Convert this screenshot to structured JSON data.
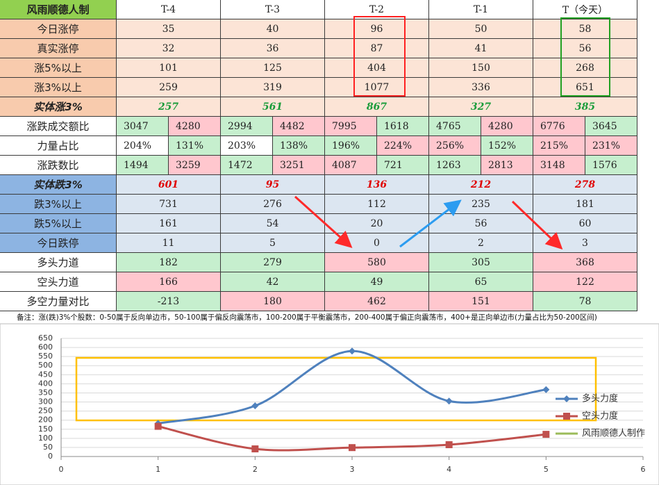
{
  "header": {
    "corner": "风雨顺德人制",
    "columns": [
      "T-4",
      "T-3",
      "T-2",
      "T-1",
      "T（今天）"
    ]
  },
  "table": {
    "rows": [
      {
        "label": "今日涨停",
        "label_fill": "#f8cbad",
        "cells": [
          "35",
          "40",
          "96",
          "50",
          "58"
        ],
        "fills": [
          "#fce4d6",
          "#fce4d6",
          "#fce4d6",
          "#fce4d6",
          "#fce4d6"
        ]
      },
      {
        "label": "真实涨停",
        "label_fill": "#f8cbad",
        "cells": [
          "32",
          "36",
          "87",
          "41",
          "56"
        ],
        "fills": [
          "#fce4d6",
          "#fce4d6",
          "#fce4d6",
          "#fce4d6",
          "#fce4d6"
        ]
      },
      {
        "label": "涨5%以上",
        "label_fill": "#f8cbad",
        "cells": [
          "101",
          "125",
          "404",
          "150",
          "268"
        ],
        "fills": [
          "#fce4d6",
          "#fce4d6",
          "#fce4d6",
          "#fce4d6",
          "#fce4d6"
        ]
      },
      {
        "label": "涨3%以上",
        "label_fill": "#f8cbad",
        "cells": [
          "259",
          "319",
          "1077",
          "336",
          "651"
        ],
        "fills": [
          "#fce4d6",
          "#fce4d6",
          "#fce4d6",
          "#fce4d6",
          "#fce4d6"
        ]
      },
      {
        "label": "实体涨3%",
        "label_fill": "#f8cbad",
        "cells": [
          "257",
          "561",
          "867",
          "327",
          "385"
        ],
        "fills": [
          "#fce4d6",
          "#fce4d6",
          "#fce4d6",
          "#fce4d6",
          "#fce4d6"
        ]
      },
      {
        "label": "涨跌成交额比",
        "label_fill": "#ffffff",
        "cells": [
          "3047",
          "4280",
          "2994",
          "4482",
          "7995",
          "1618",
          "4765",
          "4280",
          "6776",
          "3645"
        ],
        "fills": [
          "#c6efce",
          "#ffc7ce",
          "#c6efce",
          "#ffc7ce",
          "#ffc7ce",
          "#c6efce",
          "#c6efce",
          "#ffc7ce",
          "#ffc7ce",
          "#c6efce"
        ]
      },
      {
        "label": "力量占比",
        "label_fill": "#ffffff",
        "cells": [
          "204%",
          "131%",
          "203%",
          "138%",
          "196%",
          "224%",
          "256%",
          "152%",
          "215%",
          "231%"
        ],
        "fills": [
          "#ffffff",
          "#c6efce",
          "#ffffff",
          "#c6efce",
          "#c6efce",
          "#ffc7ce",
          "#ffc7ce",
          "#c6efce",
          "#ffc7ce",
          "#ffc7ce"
        ]
      },
      {
        "label": "涨跌数比",
        "label_fill": "#ffffff",
        "cells": [
          "1494",
          "3259",
          "1472",
          "3251",
          "4087",
          "721",
          "1263",
          "2813",
          "3148",
          "1576"
        ],
        "fills": [
          "#c6efce",
          "#ffc7ce",
          "#c6efce",
          "#ffc7ce",
          "#ffc7ce",
          "#c6efce",
          "#c6efce",
          "#ffc7ce",
          "#ffc7ce",
          "#c6efce"
        ]
      },
      {
        "label": "实体跌3%",
        "label_fill": "#8db4e2",
        "cells": [
          "601",
          "95",
          "136",
          "212",
          "278"
        ],
        "fills": [
          "#dce6f1",
          "#dce6f1",
          "#dce6f1",
          "#dce6f1",
          "#dce6f1"
        ]
      },
      {
        "label": "跌3%以上",
        "label_fill": "#8db4e2",
        "cells": [
          "731",
          "276",
          "112",
          "235",
          "181"
        ],
        "fills": [
          "#dce6f1",
          "#dce6f1",
          "#dce6f1",
          "#dce6f1",
          "#dce6f1"
        ]
      },
      {
        "label": "跌5%以上",
        "label_fill": "#8db4e2",
        "cells": [
          "161",
          "54",
          "20",
          "56",
          "60"
        ],
        "fills": [
          "#dce6f1",
          "#dce6f1",
          "#dce6f1",
          "#dce6f1",
          "#dce6f1"
        ]
      },
      {
        "label": "今日跌停",
        "label_fill": "#8db4e2",
        "cells": [
          "11",
          "5",
          "0",
          "2",
          "3"
        ],
        "fills": [
          "#dce6f1",
          "#dce6f1",
          "#dce6f1",
          "#dce6f1",
          "#dce6f1"
        ]
      },
      {
        "label": "多头力道",
        "label_fill": "#ffffff",
        "cells": [
          "182",
          "279",
          "580",
          "305",
          "368"
        ],
        "fills": [
          "#c6efce",
          "#c6efce",
          "#ffc7ce",
          "#c6efce",
          "#ffc7ce"
        ]
      },
      {
        "label": "空头力道",
        "label_fill": "#ffffff",
        "cells": [
          "166",
          "42",
          "49",
          "65",
          "122"
        ],
        "fills": [
          "#ffc7ce",
          "#c6efce",
          "#c6efce",
          "#c6efce",
          "#ffc7ce"
        ]
      },
      {
        "label": "多空力量对比",
        "label_fill": "#ffffff",
        "cells": [
          "-213",
          "180",
          "462",
          "151",
          "78"
        ],
        "fills": [
          "#c6efce",
          "#ffc7ce",
          "#ffc7ce",
          "#ffc7ce",
          "#c6efce"
        ]
      }
    ]
  },
  "note": "备注：涨(跌)3%个股数：0-50属于反向单边市，50-100属于偏反向震荡市，100-200属于平衡震荡市，200-400属于偏正向震荡市，400+是正向单边市(力量占比为50-200区间)",
  "chart_data": {
    "type": "line",
    "smooth": true,
    "x": [
      1,
      2,
      3,
      4,
      5
    ],
    "series": [
      {
        "name": "多头力度",
        "color": "#4f81bd",
        "marker": "diamond",
        "values": [
          182,
          279,
          580,
          305,
          368
        ]
      },
      {
        "name": "空头力度",
        "color": "#c0504d",
        "marker": "square",
        "values": [
          166,
          42,
          49,
          65,
          122
        ]
      },
      {
        "name": "风雨顺德人制作",
        "color": "#9bbb59",
        "marker": "none",
        "values": [
          null,
          null,
          null,
          null,
          null
        ]
      }
    ],
    "xlim": [
      0,
      6
    ],
    "xticks": [
      0,
      1,
      2,
      3,
      4,
      5,
      6
    ],
    "ylim": [
      0,
      650
    ],
    "yticks": [
      0,
      50,
      100,
      150,
      200,
      250,
      300,
      350,
      400,
      450,
      500,
      550,
      600,
      650
    ],
    "grid": true,
    "legend": "right"
  }
}
